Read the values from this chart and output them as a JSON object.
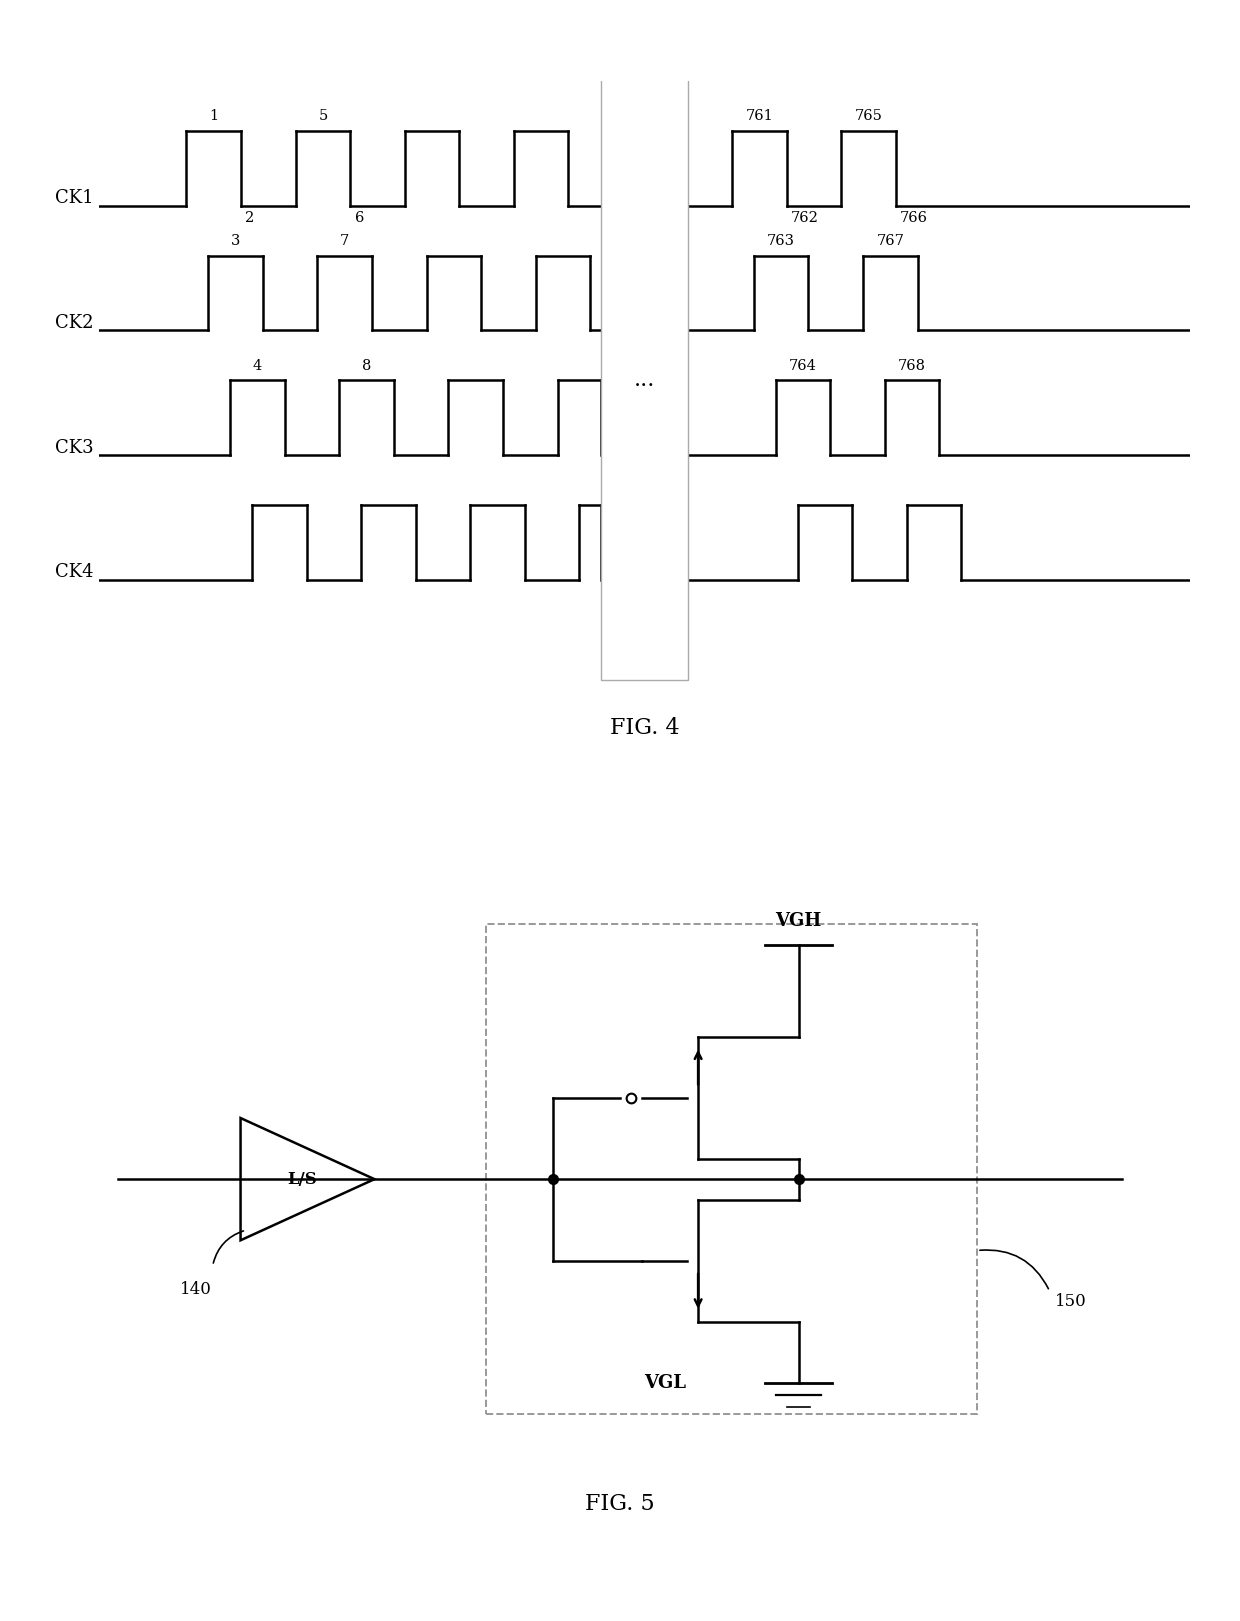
{
  "fig4_title": "FIG. 4",
  "fig5_title": "FIG. 5",
  "ck_labels": [
    "CK1",
    "CK2",
    "CK3",
    "CK4"
  ],
  "label_140": "140",
  "label_150": "150",
  "vgh_label": "VGH",
  "vgl_label": "VGL",
  "ls_label": "L/S",
  "dots_label": "...",
  "bg_color": "#ffffff",
  "line_color": "#000000",
  "dash_color": "#999999",
  "fig4_caption": "FIG. 4",
  "fig5_caption": "FIG. 5",
  "pulse_labels_ck1_top": [
    "1",
    "5",
    "761",
    "765"
  ],
  "pulse_labels_ck1_bot": [
    "2",
    "6",
    "762",
    "766"
  ],
  "pulse_labels_ck2_top": [
    "3",
    "7",
    "763",
    "767"
  ],
  "pulse_labels_ck3_top": [
    "4",
    "8",
    "764",
    "768"
  ]
}
